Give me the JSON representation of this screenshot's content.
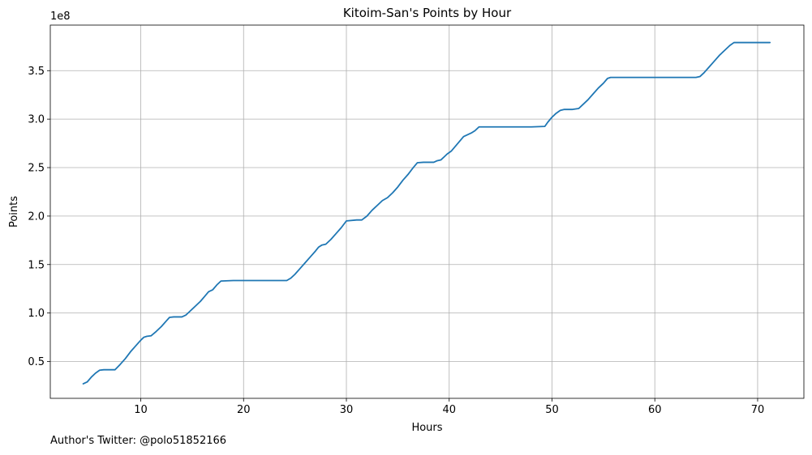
{
  "chart_data": {
    "type": "line",
    "title": "Kitoim-San's Points by Hour",
    "xlabel": "Hours",
    "ylabel": "Points",
    "y_offset_text": "1e8",
    "xlim": [
      1.2,
      74.5
    ],
    "ylim": [
      0.12,
      3.97
    ],
    "y_scale_note": "values in units of 1e8 points",
    "grid": true,
    "x_ticks": [
      10,
      20,
      30,
      40,
      50,
      60,
      70
    ],
    "x_tick_labels": [
      "10",
      "20",
      "30",
      "40",
      "50",
      "60",
      "70"
    ],
    "y_ticks": [
      0.5,
      1.0,
      1.5,
      2.0,
      2.5,
      3.0,
      3.5
    ],
    "y_tick_labels": [
      "0.5",
      "1.0",
      "1.5",
      "2.0",
      "2.5",
      "3.0",
      "3.5"
    ],
    "line_color": "#1f77b4",
    "series": [
      {
        "x": [
          4.4,
          4.8,
          5.2,
          5.6,
          6.0,
          6.4,
          7.0,
          7.5,
          8.0,
          8.5,
          9.0,
          9.5,
          10.0,
          10.3,
          10.6,
          11.0,
          11.5,
          12.0,
          12.5,
          12.8,
          13.2,
          14.0,
          14.4,
          14.8,
          15.3,
          15.8,
          16.2,
          16.6,
          17.0,
          17.4,
          17.8,
          19.0,
          21.0,
          23.0,
          24.2,
          24.6,
          25.0,
          25.5,
          26.0,
          26.5,
          27.0,
          27.3,
          27.6,
          28.0,
          28.5,
          29.0,
          29.5,
          30.0,
          31.0,
          31.5,
          32.0,
          32.5,
          33.0,
          33.5,
          34.0,
          34.5,
          35.0,
          35.5,
          36.0,
          36.5,
          36.9,
          37.5,
          38.5,
          38.8,
          39.2,
          39.5,
          39.8,
          40.2,
          40.6,
          41.0,
          41.4,
          41.8,
          42.2,
          42.5,
          42.9,
          44.0,
          46.0,
          48.0,
          49.3,
          49.6,
          50.0,
          50.4,
          50.8,
          51.2,
          52.0,
          52.6,
          53.0,
          53.5,
          54.0,
          54.5,
          55.0,
          55.4,
          55.7,
          57.0,
          60.0,
          62.0,
          64.0,
          64.4,
          64.8,
          65.3,
          65.8,
          66.3,
          66.8,
          67.3,
          67.7,
          69.0,
          71.2
        ],
        "y": [
          0.27,
          0.29,
          0.34,
          0.38,
          0.41,
          0.415,
          0.415,
          0.415,
          0.47,
          0.53,
          0.6,
          0.66,
          0.72,
          0.75,
          0.76,
          0.765,
          0.81,
          0.86,
          0.92,
          0.955,
          0.96,
          0.96,
          0.98,
          1.02,
          1.07,
          1.12,
          1.17,
          1.22,
          1.24,
          1.29,
          1.33,
          1.335,
          1.335,
          1.335,
          1.335,
          1.36,
          1.4,
          1.46,
          1.52,
          1.58,
          1.64,
          1.68,
          1.7,
          1.71,
          1.76,
          1.82,
          1.88,
          1.95,
          1.96,
          1.96,
          2.0,
          2.06,
          2.11,
          2.16,
          2.19,
          2.24,
          2.3,
          2.37,
          2.43,
          2.5,
          2.55,
          2.555,
          2.555,
          2.57,
          2.58,
          2.61,
          2.64,
          2.67,
          2.72,
          2.77,
          2.82,
          2.84,
          2.86,
          2.88,
          2.92,
          2.92,
          2.92,
          2.92,
          2.925,
          2.97,
          3.02,
          3.06,
          3.09,
          3.1,
          3.1,
          3.11,
          3.15,
          3.2,
          3.26,
          3.32,
          3.37,
          3.42,
          3.43,
          3.43,
          3.43,
          3.43,
          3.43,
          3.44,
          3.48,
          3.54,
          3.6,
          3.66,
          3.71,
          3.76,
          3.79,
          3.79,
          3.79
        ]
      }
    ]
  },
  "footnote": "Author's Twitter: @polo51852166"
}
